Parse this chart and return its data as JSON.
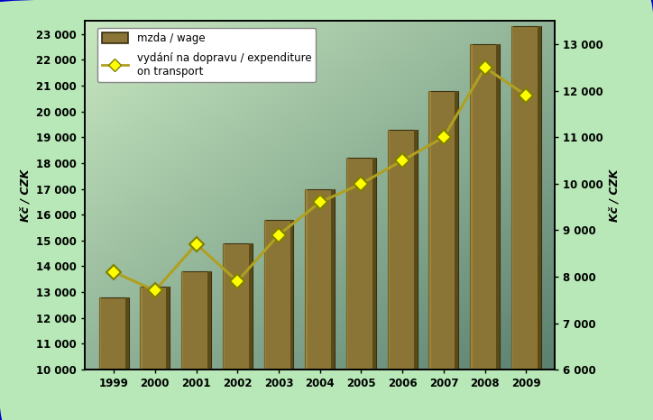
{
  "years": [
    1999,
    2000,
    2001,
    2002,
    2003,
    2004,
    2005,
    2006,
    2007,
    2008,
    2009
  ],
  "wage": [
    12800,
    13200,
    13800,
    14900,
    15800,
    17000,
    18200,
    19300,
    20800,
    22600,
    23300
  ],
  "transport": [
    8100,
    7700,
    8700,
    7900,
    8900,
    9600,
    10000,
    10500,
    11000,
    12500,
    11900
  ],
  "bar_color_face": "#8B7536",
  "bar_color_edge": "#3A3010",
  "bar_color_dark": "#5A4A18",
  "bar_color_light": "#B0963C",
  "line_color": "#B0A020",
  "marker_color": "#FFFF00",
  "marker_edge_color": "#808000",
  "bg_color": "#B8E8B8",
  "ylabel_left": "Kč / CZK",
  "ylabel_right": "Kč / CZK",
  "ylim_left": [
    10000,
    23500
  ],
  "ylim_right": [
    6000,
    13500
  ],
  "yticks_left": [
    10000,
    11000,
    12000,
    13000,
    14000,
    15000,
    16000,
    17000,
    18000,
    19000,
    20000,
    21000,
    22000,
    23000
  ],
  "yticks_right": [
    6000,
    7000,
    8000,
    9000,
    10000,
    11000,
    12000,
    13000
  ],
  "legend_label_bar": "mzda / wage",
  "legend_label_line": "vydání na dopravu / expenditure\non transport",
  "border_color": "#0000CC"
}
